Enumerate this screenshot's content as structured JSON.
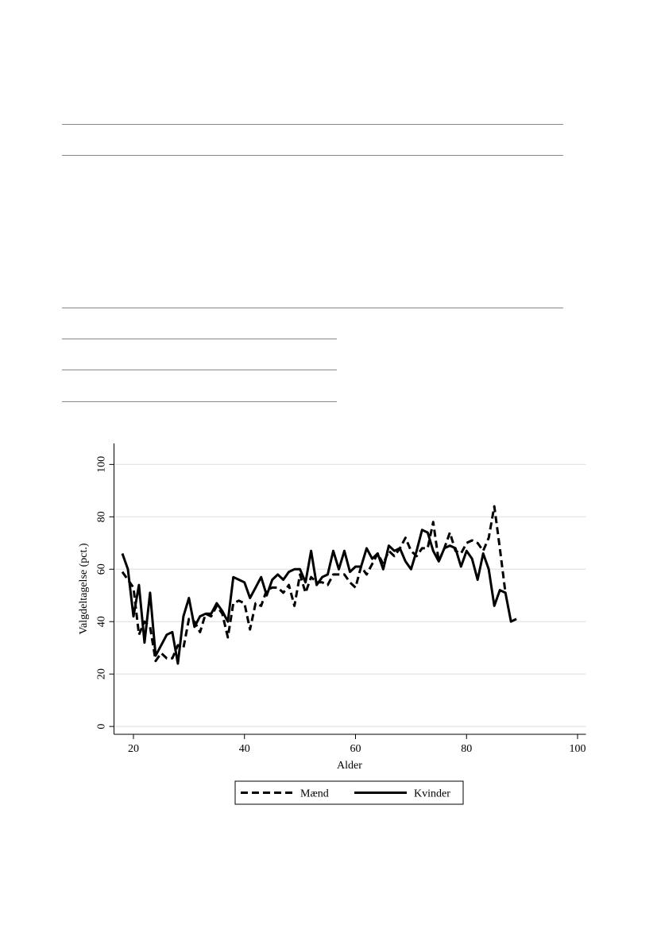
{
  "chart_data": {
    "type": "line",
    "xlabel": "Alder",
    "ylabel": "Valgdeltagelse (pct.)",
    "x": [
      18,
      19,
      20,
      21,
      22,
      23,
      24,
      25,
      26,
      27,
      28,
      29,
      30,
      31,
      32,
      33,
      34,
      35,
      36,
      37,
      38,
      39,
      40,
      41,
      42,
      43,
      44,
      45,
      46,
      47,
      48,
      49,
      50,
      51,
      52,
      53,
      54,
      55,
      56,
      57,
      58,
      59,
      60,
      61,
      62,
      63,
      64,
      65,
      66,
      67,
      68,
      69,
      70,
      71,
      72,
      73,
      74,
      75,
      76,
      77,
      78,
      79,
      80,
      81,
      82,
      83,
      84,
      85,
      86,
      87,
      88,
      89
    ],
    "series": [
      {
        "name": "Mænd",
        "color": "#000000",
        "dash": true,
        "values": [
          59,
          56,
          53,
          35,
          40,
          38,
          25,
          28,
          26,
          26,
          31,
          30,
          41,
          40,
          36,
          43,
          42,
          46,
          43,
          34,
          47,
          48,
          47,
          37,
          47,
          46,
          52,
          53,
          53,
          51,
          54,
          46,
          58,
          51,
          57,
          55,
          55,
          54,
          58,
          58,
          58,
          55,
          53,
          61,
          58,
          62,
          66,
          62,
          67,
          65,
          68,
          72,
          67,
          65,
          68,
          68,
          78,
          63,
          68,
          74,
          67,
          66,
          70,
          71,
          70,
          67,
          72,
          84,
          68,
          51,
          null,
          null
        ]
      },
      {
        "name": "Kvinder",
        "color": "#000000",
        "dash": false,
        "values": [
          66,
          60,
          42,
          54,
          32,
          51,
          27,
          31,
          35,
          36,
          24,
          42,
          49,
          38,
          42,
          43,
          43,
          47,
          44,
          40,
          57,
          56,
          55,
          49,
          53,
          57,
          50,
          56,
          58,
          56,
          59,
          60,
          60,
          55,
          67,
          54,
          57,
          58,
          67,
          60,
          67,
          59,
          61,
          61,
          68,
          64,
          66,
          60,
          69,
          67,
          68,
          63,
          60,
          67,
          75,
          74,
          67,
          63,
          68,
          69,
          68,
          61,
          67,
          64,
          56,
          66,
          60,
          46,
          52,
          51,
          40,
          41
        ]
      }
    ],
    "xlim": [
      16.5,
      101.5
    ],
    "xticks": [
      20,
      40,
      60,
      80,
      100
    ],
    "ylim": [
      -3,
      108
    ],
    "yticks": [
      0,
      20,
      40,
      60,
      80,
      100
    ],
    "grid": true,
    "legend": "bottom"
  }
}
